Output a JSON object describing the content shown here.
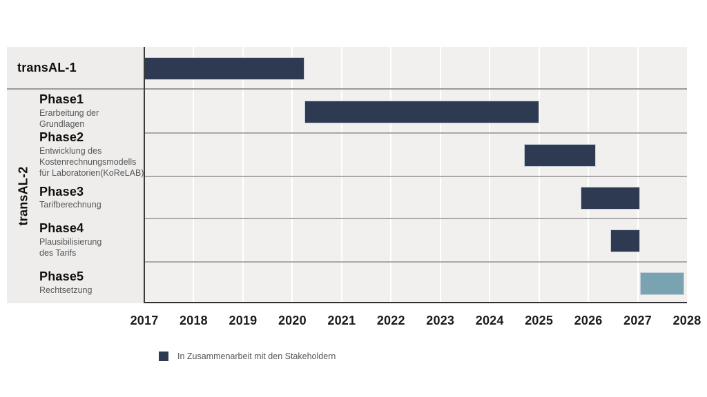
{
  "chart_data": {
    "type": "gantt",
    "title": "",
    "colors": {
      "dark": "#2d3a52",
      "light": "#7aa3b1"
    },
    "x_axis": {
      "min": 2017,
      "max": 2028,
      "ticks": [
        2017,
        2018,
        2019,
        2020,
        2021,
        2022,
        2023,
        2024,
        2025,
        2026,
        2027,
        2028
      ]
    },
    "y_group_label": "transAL-2",
    "rows": [
      {
        "id": "transal1",
        "group": "transAL-1",
        "title": "transAL-1",
        "desc": "",
        "bar": {
          "start": 2017.0,
          "end": 2020.25,
          "color": "dark"
        }
      },
      {
        "id": "phase1",
        "group": "transAL-2",
        "title": "Phase1",
        "desc": "Erarbeitung der\nGrundlagen",
        "bar": {
          "start": 2020.25,
          "end": 2025.0,
          "color": "dark"
        }
      },
      {
        "id": "phase2",
        "group": "transAL-2",
        "title": "Phase2",
        "desc": "Entwicklung des\nKostenrechnungsmodells\nfür Laboratorien(KoReLAB)",
        "bar": {
          "start": 2024.7,
          "end": 2026.15,
          "color": "dark"
        }
      },
      {
        "id": "phase3",
        "group": "transAL-2",
        "title": "Phase3",
        "desc": "Tarifberechnung",
        "bar": {
          "start": 2025.85,
          "end": 2027.05,
          "color": "dark"
        }
      },
      {
        "id": "phase4",
        "group": "transAL-2",
        "title": "Phase4",
        "desc": "Plausibilisierung\ndes Tarifs",
        "bar": {
          "start": 2026.45,
          "end": 2027.05,
          "color": "dark"
        }
      },
      {
        "id": "phase5",
        "group": "transAL-2",
        "title": "Phase5",
        "desc": "Rechtsetzung",
        "bar": {
          "start": 2027.05,
          "end": 2027.95,
          "color": "light"
        }
      }
    ],
    "legend": {
      "swatch_color": "dark",
      "label": "In Zusammenarbeit mit den Stakeholdern"
    }
  }
}
